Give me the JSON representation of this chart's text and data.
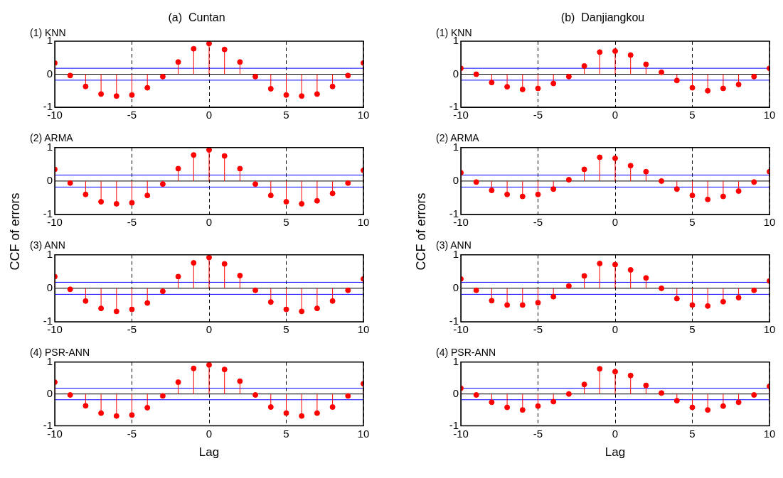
{
  "chart_data": [
    {
      "type": "lollipop",
      "title": "(a)  Cuntan",
      "subtitle": "(1) KNN",
      "x": [
        -10,
        -9,
        -8,
        -7,
        -6,
        -5,
        -4,
        -3,
        -2,
        -1,
        0,
        1,
        2,
        3,
        4,
        5,
        6,
        7,
        8,
        9,
        10
      ],
      "values": [
        0.34,
        -0.04,
        -0.37,
        -0.6,
        -0.66,
        -0.63,
        -0.41,
        -0.07,
        0.37,
        0.77,
        0.93,
        0.75,
        0.37,
        -0.07,
        -0.44,
        -0.63,
        -0.66,
        -0.6,
        -0.37,
        -0.04,
        0.34
      ],
      "color": "#ff0000",
      "marker": "circle",
      "grid": "x",
      "xlim": [
        -10,
        10
      ],
      "xticks": [
        -10,
        -5,
        0,
        5,
        10
      ],
      "ylim": [
        -1,
        1
      ],
      "yticks": [
        -1,
        0,
        1
      ],
      "ref_lines": [
        {
          "axis": "y",
          "value": 0.18,
          "color": "#0000ff"
        },
        {
          "axis": "y",
          "value": -0.18,
          "color": "#0000ff"
        },
        {
          "axis": "y",
          "value": 0,
          "color": "#000000"
        }
      ]
    },
    {
      "type": "lollipop",
      "title": "(2) ARMA",
      "ylabel": "CCF of errors",
      "x": [
        -10,
        -9,
        -8,
        -7,
        -6,
        -5,
        -4,
        -3,
        -2,
        -1,
        0,
        1,
        2,
        3,
        4,
        5,
        6,
        7,
        8,
        9,
        10
      ],
      "values": [
        0.35,
        -0.06,
        -0.4,
        -0.62,
        -0.68,
        -0.65,
        -0.43,
        -0.09,
        0.37,
        0.78,
        0.93,
        0.75,
        0.37,
        -0.09,
        -0.43,
        -0.62,
        -0.68,
        -0.59,
        -0.37,
        -0.06,
        0.32
      ],
      "color": "#ff0000",
      "marker": "circle",
      "grid": "x",
      "xlim": [
        -10,
        10
      ],
      "xticks": [
        -10,
        -5,
        0,
        5,
        10
      ],
      "ylim": [
        -1,
        1
      ],
      "yticks": [
        -1,
        0,
        1
      ],
      "ref_lines": [
        {
          "axis": "y",
          "value": 0.18,
          "color": "#0000ff"
        },
        {
          "axis": "y",
          "value": -0.18,
          "color": "#0000ff"
        },
        {
          "axis": "y",
          "value": 0,
          "color": "#000000"
        }
      ]
    },
    {
      "type": "lollipop",
      "title": "(3) ANN",
      "x": [
        -10,
        -9,
        -8,
        -7,
        -6,
        -5,
        -4,
        -3,
        -2,
        -1,
        0,
        1,
        2,
        3,
        4,
        5,
        6,
        7,
        8,
        9,
        10
      ],
      "values": [
        0.35,
        -0.03,
        -0.38,
        -0.6,
        -0.69,
        -0.63,
        -0.44,
        -0.09,
        0.35,
        0.76,
        0.92,
        0.73,
        0.38,
        -0.06,
        -0.41,
        -0.63,
        -0.69,
        -0.6,
        -0.38,
        -0.06,
        0.28
      ],
      "color": "#ff0000",
      "marker": "circle",
      "grid": "x",
      "xlim": [
        -10,
        10
      ],
      "xticks": [
        -10,
        -5,
        0,
        5,
        10
      ],
      "ylim": [
        -1,
        1
      ],
      "yticks": [
        -1,
        0,
        1
      ],
      "ref_lines": [
        {
          "axis": "y",
          "value": 0.18,
          "color": "#0000ff"
        },
        {
          "axis": "y",
          "value": -0.18,
          "color": "#0000ff"
        },
        {
          "axis": "y",
          "value": 0,
          "color": "#000000"
        }
      ]
    },
    {
      "type": "lollipop",
      "title": "(4) PSR-ANN",
      "xlabel": "Lag",
      "x": [
        -10,
        -9,
        -8,
        -7,
        -6,
        -5,
        -4,
        -3,
        -2,
        -1,
        0,
        1,
        2,
        3,
        4,
        5,
        6,
        7,
        8,
        9,
        10
      ],
      "values": [
        0.37,
        -0.03,
        -0.37,
        -0.6,
        -0.69,
        -0.66,
        -0.43,
        -0.06,
        0.37,
        0.8,
        0.91,
        0.77,
        0.4,
        -0.03,
        -0.41,
        -0.6,
        -0.69,
        -0.6,
        -0.41,
        -0.06,
        0.32
      ],
      "color": "#ff0000",
      "marker": "circle",
      "grid": "x",
      "xlim": [
        -10,
        10
      ],
      "xticks": [
        -10,
        -5,
        0,
        5,
        10
      ],
      "ylim": [
        -1,
        1
      ],
      "yticks": [
        -1,
        0,
        1
      ],
      "ref_lines": [
        {
          "axis": "y",
          "value": 0.18,
          "color": "#0000ff"
        },
        {
          "axis": "y",
          "value": -0.18,
          "color": "#0000ff"
        },
        {
          "axis": "y",
          "value": 0,
          "color": "#000000"
        }
      ]
    },
    {
      "type": "lollipop",
      "title": "(b)  Danjiangkou",
      "subtitle": "(1) KNN",
      "x": [
        -10,
        -9,
        -8,
        -7,
        -6,
        -5,
        -4,
        -3,
        -2,
        -1,
        0,
        1,
        2,
        3,
        4,
        5,
        6,
        7,
        8,
        9,
        10
      ],
      "values": [
        0.18,
        0,
        -0.25,
        -0.38,
        -0.46,
        -0.43,
        -0.28,
        -0.07,
        0.25,
        0.67,
        0.7,
        0.58,
        0.3,
        0.06,
        -0.19,
        -0.41,
        -0.5,
        -0.43,
        -0.31,
        -0.07,
        0.18
      ],
      "color": "#ff0000",
      "marker": "circle",
      "grid": "x",
      "xlim": [
        -10,
        10
      ],
      "xticks": [
        -10,
        -5,
        0,
        5,
        10
      ],
      "ylim": [
        -1,
        1
      ],
      "yticks": [
        -1,
        0,
        1
      ],
      "ref_lines": [
        {
          "axis": "y",
          "value": 0.18,
          "color": "#0000ff"
        },
        {
          "axis": "y",
          "value": -0.18,
          "color": "#0000ff"
        },
        {
          "axis": "y",
          "value": 0,
          "color": "#000000"
        }
      ]
    },
    {
      "type": "lollipop",
      "title": "(2) ARMA",
      "ylabel": "CCF of errors",
      "x": [
        -10,
        -9,
        -8,
        -7,
        -6,
        -5,
        -4,
        -3,
        -2,
        -1,
        0,
        1,
        2,
        3,
        4,
        5,
        6,
        7,
        8,
        9,
        10
      ],
      "values": [
        0.25,
        -0.03,
        -0.28,
        -0.4,
        -0.46,
        -0.4,
        -0.24,
        0.04,
        0.35,
        0.71,
        0.68,
        0.46,
        0.28,
        0,
        -0.24,
        -0.43,
        -0.55,
        -0.46,
        -0.3,
        -0.03,
        0.28
      ],
      "color": "#ff0000",
      "marker": "circle",
      "grid": "x",
      "xlim": [
        -10,
        10
      ],
      "xticks": [
        -10,
        -5,
        0,
        5,
        10
      ],
      "ylim": [
        -1,
        1
      ],
      "yticks": [
        -1,
        0,
        1
      ],
      "ref_lines": [
        {
          "axis": "y",
          "value": 0.18,
          "color": "#0000ff"
        },
        {
          "axis": "y",
          "value": -0.18,
          "color": "#0000ff"
        },
        {
          "axis": "y",
          "value": 0,
          "color": "#000000"
        }
      ]
    },
    {
      "type": "lollipop",
      "title": "(3) ANN",
      "x": [
        -10,
        -9,
        -8,
        -7,
        -6,
        -5,
        -4,
        -3,
        -2,
        -1,
        0,
        1,
        2,
        3,
        4,
        5,
        6,
        7,
        8,
        9,
        10
      ],
      "values": [
        0.28,
        -0.06,
        -0.37,
        -0.5,
        -0.5,
        -0.43,
        -0.25,
        0.07,
        0.37,
        0.74,
        0.71,
        0.55,
        0.31,
        0,
        -0.31,
        -0.5,
        -0.53,
        -0.4,
        -0.28,
        -0.06,
        0.22
      ],
      "color": "#ff0000",
      "marker": "circle",
      "grid": "x",
      "xlim": [
        -10,
        10
      ],
      "xticks": [
        -10,
        -5,
        0,
        5,
        10
      ],
      "ylim": [
        -1,
        1
      ],
      "yticks": [
        -1,
        0,
        1
      ],
      "ref_lines": [
        {
          "axis": "y",
          "value": 0.18,
          "color": "#0000ff"
        },
        {
          "axis": "y",
          "value": -0.18,
          "color": "#0000ff"
        },
        {
          "axis": "y",
          "value": 0,
          "color": "#000000"
        }
      ]
    },
    {
      "type": "lollipop",
      "title": "(4) PSR-ANN",
      "xlabel": "Lag",
      "x": [
        -10,
        -9,
        -8,
        -7,
        -6,
        -5,
        -4,
        -3,
        -2,
        -1,
        0,
        1,
        2,
        3,
        4,
        5,
        6,
        7,
        8,
        9,
        10
      ],
      "values": [
        0.18,
        -0.03,
        -0.26,
        -0.42,
        -0.5,
        -0.38,
        -0.24,
        0,
        0.3,
        0.79,
        0.7,
        0.58,
        0.27,
        0.03,
        -0.21,
        -0.42,
        -0.5,
        -0.38,
        -0.26,
        -0.03,
        0.24
      ],
      "color": "#ff0000",
      "marker": "circle",
      "grid": "x",
      "xlim": [
        -10,
        10
      ],
      "xticks": [
        -10,
        -5,
        0,
        5,
        10
      ],
      "ylim": [
        -1,
        1
      ],
      "yticks": [
        -1,
        0,
        1
      ],
      "ref_lines": [
        {
          "axis": "y",
          "value": 0.18,
          "color": "#0000ff"
        },
        {
          "axis": "y",
          "value": -0.18,
          "color": "#0000ff"
        },
        {
          "axis": "y",
          "value": 0,
          "color": "#000000"
        }
      ]
    }
  ]
}
